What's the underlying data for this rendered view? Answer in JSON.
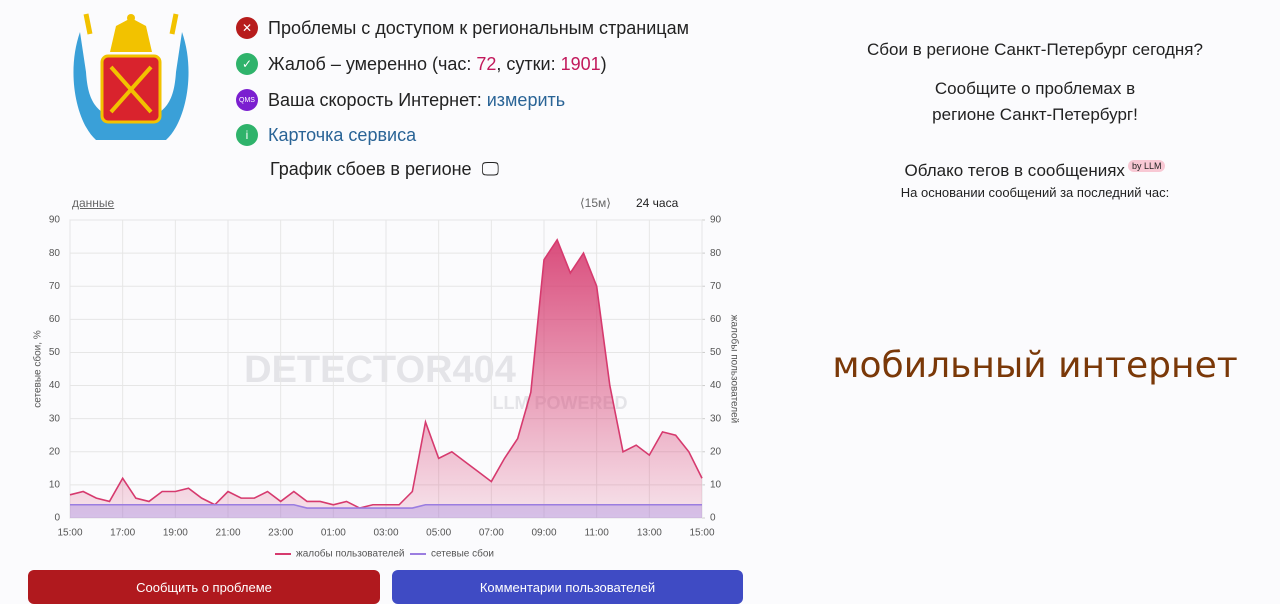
{
  "header": {
    "access": "Проблемы с доступом к региональным страницам",
    "complaints": {
      "prefix": "Жалоб – умеренно (час: ",
      "hour": 72,
      "mid": ", сутки: ",
      "day": 1901,
      "suffix": ")"
    },
    "speed": {
      "icon": "QMS",
      "label": "Ваша скорость Интернет: ",
      "link": "измерить"
    },
    "card": "Карточка сервиса",
    "chart_heading": "График сбоев в регионе"
  },
  "toolbar": {
    "data": "данные",
    "step": "⟨15м⟩",
    "range": "24 часа"
  },
  "watermark": [
    "DETECTOR404",
    "LLM POWERED"
  ],
  "chart_data": {
    "type": "line",
    "categories": [
      "15:00",
      null,
      null,
      null,
      "17:00",
      null,
      null,
      null,
      "19:00",
      null,
      null,
      null,
      "21:00",
      null,
      null,
      null,
      "23:00",
      null,
      null,
      null,
      "01:00",
      null,
      null,
      null,
      "03:00",
      null,
      null,
      null,
      "05:00",
      null,
      null,
      null,
      "07:00",
      null,
      null,
      null,
      "09:00",
      null,
      null,
      null,
      "11:00",
      null,
      null,
      null,
      "13:00",
      null,
      null,
      null,
      "15:00"
    ],
    "series": [
      {
        "name": "жалобы пользователей",
        "color": "#d63a6e",
        "axis": "y2",
        "values": [
          7,
          8,
          6,
          5,
          12,
          6,
          5,
          8,
          8,
          9,
          6,
          4,
          8,
          6,
          6,
          8,
          5,
          8,
          5,
          5,
          4,
          5,
          3,
          4,
          4,
          4,
          8,
          29,
          18,
          20,
          17,
          14,
          11,
          18,
          24,
          38,
          78,
          84,
          74,
          80,
          70,
          40,
          20,
          22,
          19,
          26,
          25,
          20,
          12
        ]
      },
      {
        "name": "сетевые сбои",
        "color": "#9b7de0",
        "values": [
          4,
          4,
          4,
          4,
          4,
          4,
          4,
          4,
          4,
          4,
          4,
          4,
          4,
          4,
          4,
          4,
          4,
          4,
          3,
          3,
          3,
          3,
          3,
          3,
          3,
          3,
          3,
          4,
          4,
          4,
          4,
          4,
          4,
          4,
          4,
          4,
          4,
          4,
          4,
          4,
          4,
          4,
          4,
          4,
          4,
          4,
          4,
          4,
          4
        ]
      }
    ],
    "ylabel": "сетевые сбои, %",
    "y2label": "жалобы пользователей",
    "ylim": [
      0,
      90
    ],
    "yticks": [
      0,
      10,
      20,
      30,
      40,
      50,
      60,
      70,
      80,
      90
    ],
    "y2lim": [
      0,
      90
    ],
    "y2ticks": [
      0,
      10,
      20,
      30,
      40,
      50,
      60,
      70,
      80,
      90
    ],
    "grid": true,
    "legend": "bottom"
  },
  "buttons": {
    "report": "Сообщить о проблеме",
    "comments": "Комментарии пользователей"
  },
  "side": {
    "question": "Сбои в регионе Санкт-Петербург сегодня?",
    "report": "Сообщите о проблемах в регионе Санкт-Петербург!",
    "cloud": "Облако тегов в сообщениях",
    "badge": "by LLM",
    "basis": "На основании сообщений за последний час:",
    "tag": "мобильный интернет"
  }
}
